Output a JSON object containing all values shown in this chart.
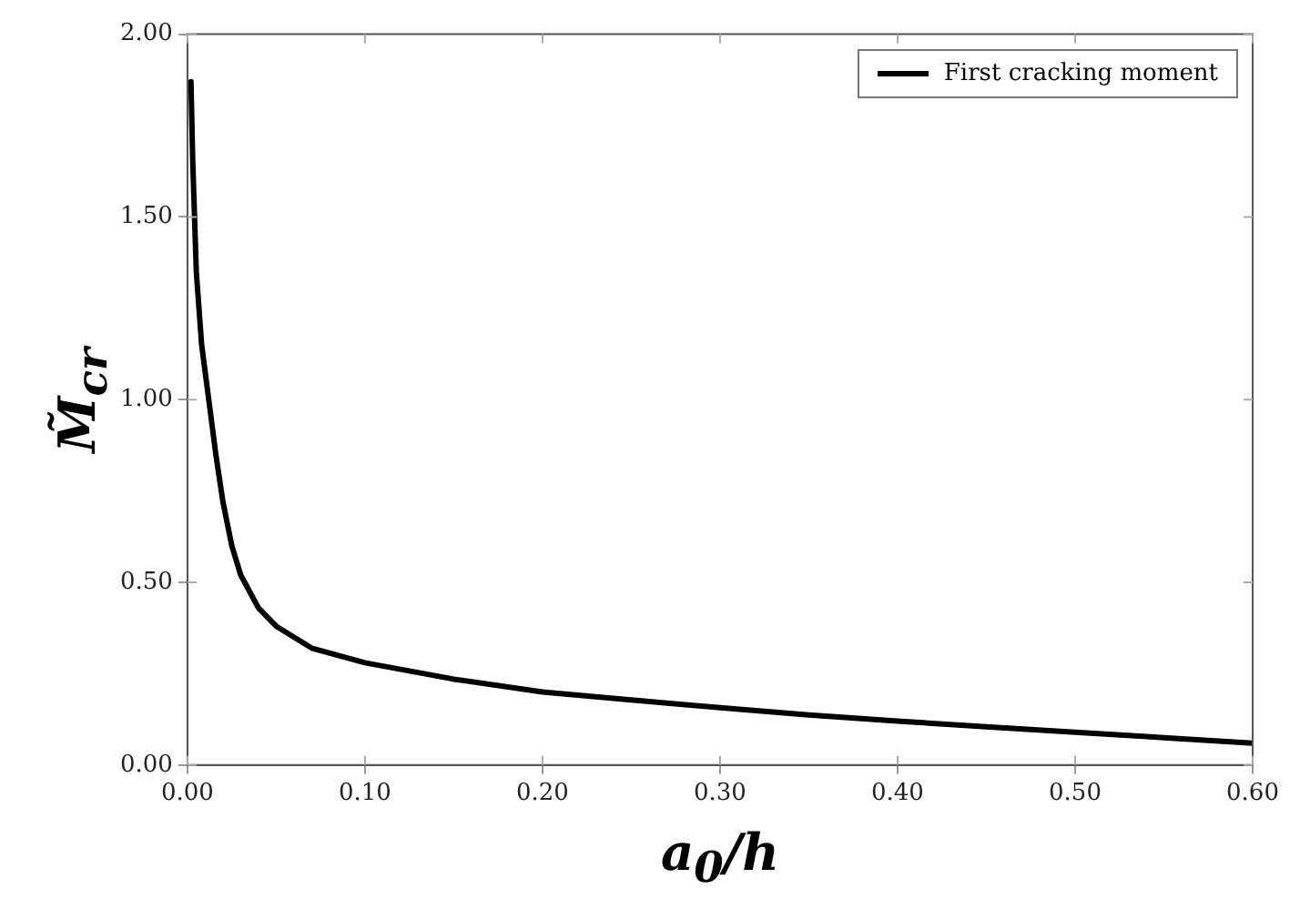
{
  "chart_data": {
    "type": "line",
    "xlabel": "a$_{0}$/h",
    "ylabel": "M̃$_{cr}$",
    "x": [
      0.002,
      0.003,
      0.005,
      0.008,
      0.012,
      0.016,
      0.02,
      0.025,
      0.03,
      0.04,
      0.05,
      0.07,
      0.1,
      0.15,
      0.2,
      0.25,
      0.3,
      0.35,
      0.4,
      0.45,
      0.5,
      0.55,
      0.6
    ],
    "series": [
      {
        "name": "First cracking moment",
        "color": "#000000",
        "values": [
          1.87,
          1.65,
          1.35,
          1.15,
          1.0,
          0.85,
          0.72,
          0.6,
          0.52,
          0.43,
          0.38,
          0.32,
          0.28,
          0.235,
          0.2,
          0.178,
          0.157,
          0.137,
          0.12,
          0.105,
          0.09,
          0.075,
          0.06
        ]
      }
    ],
    "xlim": [
      0,
      0.6
    ],
    "xticks": [
      {
        "value": 0,
        "label": "0.00"
      },
      {
        "value": 0.1,
        "label": "0.10"
      },
      {
        "value": 0.2,
        "label": "0.20"
      },
      {
        "value": 0.3,
        "label": "0.30"
      },
      {
        "value": 0.4,
        "label": "0.40"
      },
      {
        "value": 0.5,
        "label": "0.50"
      },
      {
        "value": 0.6,
        "label": "0.60"
      }
    ],
    "ylim": [
      0,
      2
    ],
    "yticks": [
      {
        "value": 0,
        "label": "0.00"
      },
      {
        "value": 0.5,
        "label": "0.50"
      },
      {
        "value": 1,
        "label": "1.00"
      },
      {
        "value": 1.5,
        "label": "1.50"
      },
      {
        "value": 2,
        "label": "2.00"
      }
    ],
    "grid": false,
    "legend": "top right",
    "marker": "none",
    "line_style": "solid"
  }
}
